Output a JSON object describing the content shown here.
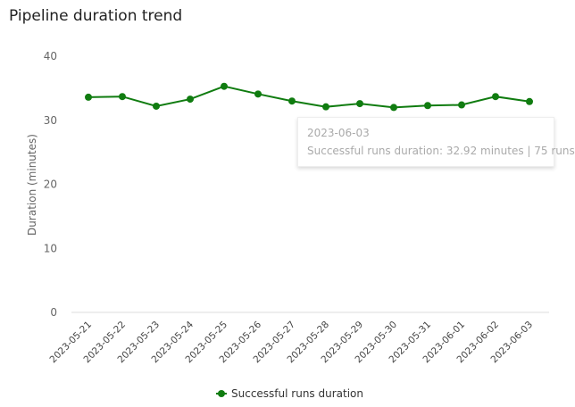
{
  "chart_data": {
    "type": "line",
    "title": "Pipeline duration trend",
    "ylabel": "Duration (minutes)",
    "xlabel": "",
    "ylim": [
      0,
      40
    ],
    "yticks": [
      0,
      10,
      20,
      30,
      40
    ],
    "grid": "baseline only",
    "legend_placement": "bottom",
    "categories": [
      "2023-05-21",
      "2023-05-22",
      "2023-05-23",
      "2023-05-24",
      "2023-05-25",
      "2023-05-26",
      "2023-05-27",
      "2023-05-28",
      "2023-05-29",
      "2023-05-30",
      "2023-05-31",
      "2023-06-01",
      "2023-06-02",
      "2023-06-03"
    ],
    "series": [
      {
        "name": "Successful runs duration",
        "color": "#107c10",
        "values": [
          33.6,
          33.7,
          32.2,
          33.3,
          35.3,
          34.1,
          33.0,
          32.1,
          32.6,
          32.0,
          32.3,
          32.4,
          33.7,
          32.92
        ]
      }
    ],
    "tooltip": {
      "date": "2023-06-03",
      "text": "Successful runs duration: 32.92 minutes | 75 runs"
    }
  }
}
